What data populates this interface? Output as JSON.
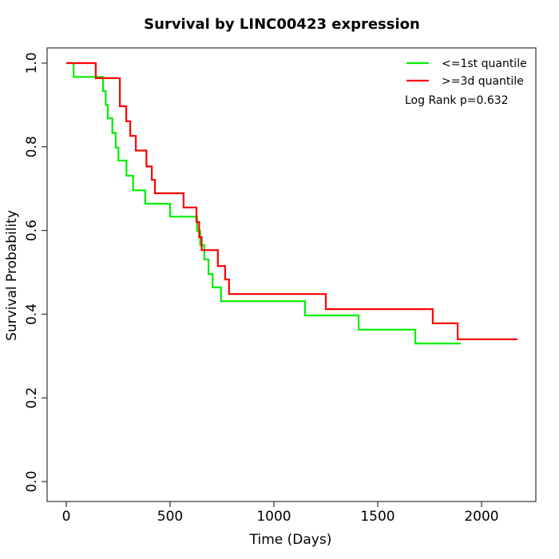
{
  "chart_data": {
    "type": "line",
    "subtype": "kaplan-meier-step",
    "title": "Survival by LINC00423 expression",
    "xlabel": "Time (Days)",
    "ylabel": "Survival Probability",
    "xlim": [
      0,
      2200
    ],
    "ylim": [
      0.0,
      1.0
    ],
    "x_ticks": [
      0,
      500,
      1000,
      1500,
      2000
    ],
    "y_ticks": [
      "0.0",
      "0.2",
      "0.4",
      "0.6",
      "0.8",
      "1.0"
    ],
    "grid": false,
    "legend_position": "top-right",
    "annotation": "Log Rank p=0.632",
    "series": [
      {
        "name": "<=1st quantile",
        "color": "#00EE00",
        "end_time": 1900,
        "steps": [
          [
            0,
            1.0
          ],
          [
            35,
            0.967
          ],
          [
            177,
            0.933
          ],
          [
            190,
            0.9
          ],
          [
            200,
            0.868
          ],
          [
            222,
            0.833
          ],
          [
            238,
            0.798
          ],
          [
            251,
            0.767
          ],
          [
            290,
            0.731
          ],
          [
            322,
            0.696
          ],
          [
            380,
            0.664
          ],
          [
            500,
            0.633
          ],
          [
            630,
            0.599
          ],
          [
            645,
            0.565
          ],
          [
            665,
            0.531
          ],
          [
            685,
            0.496
          ],
          [
            705,
            0.464
          ],
          [
            745,
            0.431
          ],
          [
            1150,
            0.397
          ],
          [
            1408,
            0.363
          ],
          [
            1681,
            0.33
          ]
        ]
      },
      {
        "name": ">=3d quantile",
        "color": "#FF0000",
        "end_time": 2173,
        "steps": [
          [
            0,
            1.0
          ],
          [
            142,
            0.964
          ],
          [
            258,
            0.897
          ],
          [
            289,
            0.861
          ],
          [
            308,
            0.826
          ],
          [
            335,
            0.791
          ],
          [
            386,
            0.753
          ],
          [
            412,
            0.721
          ],
          [
            427,
            0.689
          ],
          [
            565,
            0.655
          ],
          [
            627,
            0.62
          ],
          [
            640,
            0.584
          ],
          [
            652,
            0.553
          ],
          [
            730,
            0.515
          ],
          [
            765,
            0.483
          ],
          [
            784,
            0.448
          ],
          [
            1250,
            0.412
          ],
          [
            1765,
            0.378
          ],
          [
            1885,
            0.34
          ]
        ]
      }
    ]
  }
}
